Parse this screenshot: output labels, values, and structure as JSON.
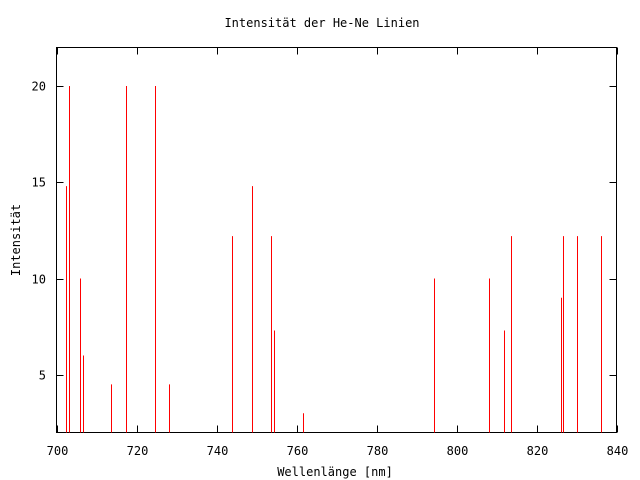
{
  "chart_data": {
    "type": "bar",
    "title": "Intensität der He-Ne Linien",
    "xlabel": "Wellenlänge [nm]",
    "ylabel": "Intensität",
    "xlim": [
      700,
      840
    ],
    "ylim": [
      2,
      22
    ],
    "x_ticks": [
      700,
      720,
      740,
      760,
      780,
      800,
      820,
      840
    ],
    "y_ticks": [
      5,
      10,
      15,
      20
    ],
    "bar_color": "#ff0000",
    "grid": false,
    "legend": "none",
    "series": [
      {
        "x": [
          702.4,
          703.2,
          705.9,
          706.5,
          713.5,
          717.4,
          724.5,
          728.1,
          743.9,
          748.9,
          753.6,
          754.4,
          761.6,
          794.3,
          808.2,
          811.9,
          813.6,
          826.0,
          826.6,
          830.0,
          836.0
        ],
        "y": [
          14.8,
          20.0,
          10.0,
          6.0,
          4.5,
          20.0,
          20.0,
          4.5,
          12.2,
          14.8,
          12.2,
          7.3,
          3.0,
          10.0,
          10.0,
          7.3,
          12.2,
          9.0,
          12.2,
          12.2,
          12.2
        ]
      }
    ]
  }
}
